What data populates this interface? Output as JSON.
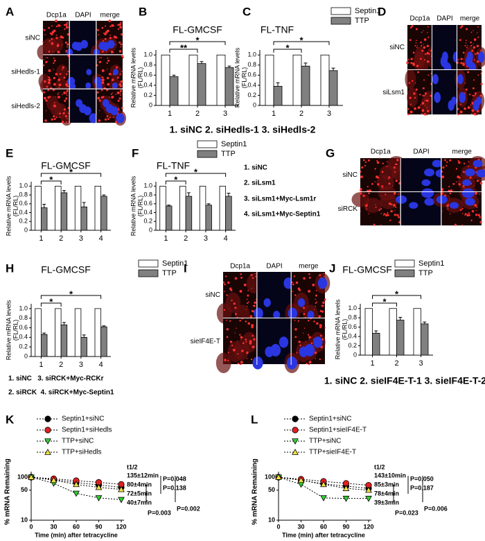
{
  "micrographs": [
    {
      "panel": "A",
      "columns": [
        "Dcp1a",
        "DAPI",
        "merge"
      ],
      "rows": [
        "siNC",
        "siHedls-1",
        "siHedls-2"
      ]
    },
    {
      "panel": "D",
      "columns": [
        "Dcp1a",
        "DAPI",
        "merge"
      ],
      "rows": [
        "siNC",
        "siLsm1"
      ]
    },
    {
      "panel": "G",
      "columns": [
        "Dcp1a",
        "DAPI",
        "merge"
      ],
      "rows": [
        "siNC",
        "siRCK"
      ]
    },
    {
      "panel": "I",
      "columns": [
        "Dcp1a",
        "DAPI",
        "merge"
      ],
      "rows": [
        "siNC",
        "sieIF4E-T"
      ]
    }
  ],
  "captions": [
    "1. siNC 2. siHedls-1 3. siHedls-2",
    "1. siNC",
    "2. siLsm1",
    "3. siLsm1+Myc-Lsm1r",
    "4. siLsm1+Myc-Septin1",
    "1. siNC   3. siRCK+Myc-RCKr",
    "2. siRCK  4. siRCK+Myc-Septin1",
    "1. siNC 2. sieIF4E-T-1 3. sieIF4E-T-2"
  ],
  "chart_data": [
    {
      "type": "bar",
      "panel": "B",
      "title": "FL-GMCSF",
      "ylabel": [
        "Relative mRNA levels",
        "(FL/RL)"
      ],
      "categories": [
        "1",
        "2",
        "3"
      ],
      "series": [
        {
          "color": "#ffffff",
          "values": [
            1,
            1,
            1
          ]
        },
        {
          "color": "#808080",
          "values": [
            0.57,
            0.83,
            0.75
          ],
          "errors": [
            0.03,
            0.04,
            0.03
          ]
        }
      ],
      "ylim": [
        0,
        1.1
      ],
      "yticks": [
        0,
        0.2,
        0.4,
        0.6,
        0.8,
        {
          "value": 1,
          "label": "1.0"
        }
      ],
      "brackets": [
        {
          "between": [
            0,
            1
          ],
          "label": "**"
        },
        {
          "between": [
            0,
            2
          ],
          "label": "*"
        }
      ]
    },
    {
      "type": "bar",
      "panel": "C",
      "title": "FL-TNF",
      "ylabel": [
        "Relative mRNA levels",
        "(FL/RL)"
      ],
      "categories": [
        "1",
        "2",
        "3"
      ],
      "series": [
        {
          "name": "Septin1",
          "color": "#ffffff",
          "values": [
            1,
            1,
            1
          ]
        },
        {
          "name": "TTP",
          "color": "#808080",
          "values": [
            0.38,
            0.78,
            0.69
          ],
          "errors": [
            0.07,
            0.06,
            0.05
          ]
        }
      ],
      "ylim": [
        0,
        1.1
      ],
      "yticks": [
        0,
        0.2,
        0.4,
        0.6,
        0.8,
        {
          "value": 1,
          "label": "1.0"
        }
      ],
      "brackets": [
        {
          "between": [
            0,
            1
          ],
          "label": "*"
        },
        {
          "between": [
            0,
            2
          ],
          "label": "*"
        }
      ]
    },
    {
      "type": "bar",
      "panel": "E",
      "title": "FL-GMCSF",
      "ylabel": [
        "Relative mRNA levels",
        "(FL/RL)"
      ],
      "categories": [
        "1",
        "2",
        "3",
        "4"
      ],
      "series": [
        {
          "color": "#ffffff",
          "values": [
            1,
            1,
            1,
            1
          ]
        },
        {
          "color": "#808080",
          "values": [
            0.51,
            0.85,
            0.53,
            0.77
          ],
          "errors": [
            0.08,
            0.05,
            0.1,
            0.03
          ]
        }
      ],
      "ylim": [
        0,
        1.1
      ],
      "yticks": [
        0,
        0.2,
        0.4,
        0.6,
        0.8,
        {
          "value": 1,
          "label": "1.0"
        }
      ],
      "brackets": [
        {
          "between": [
            0,
            1
          ],
          "label": "*"
        },
        {
          "between": [
            0,
            3
          ],
          "label": "*"
        }
      ]
    },
    {
      "type": "bar",
      "panel": "F",
      "title": "FL-TNF",
      "ylabel": [
        "Relative mRNA levels",
        "(FL/RL)"
      ],
      "categories": [
        "1",
        "2",
        "3",
        "4"
      ],
      "series": [
        {
          "name": "Septin1",
          "color": "#ffffff",
          "values": [
            1,
            1,
            1,
            1
          ]
        },
        {
          "name": "TTP",
          "color": "#808080",
          "values": [
            0.55,
            0.77,
            0.57,
            0.77
          ],
          "errors": [
            0.02,
            0.08,
            0.03,
            0.07
          ]
        }
      ],
      "ylim": [
        0,
        1.1
      ],
      "yticks": [
        0,
        0.2,
        0.4,
        0.6,
        0.8,
        {
          "value": 1,
          "label": "1.0"
        }
      ],
      "brackets": [
        {
          "between": [
            0,
            1
          ],
          "label": "*"
        },
        {
          "between": [
            0,
            3
          ],
          "label": "*"
        }
      ]
    },
    {
      "type": "bar",
      "panel": "H",
      "title": "FL-GMCSF",
      "ylabel": [
        "Relative mRNA levels",
        "(FL/RL)"
      ],
      "categories": [
        "1",
        "2",
        "3",
        "4"
      ],
      "series": [
        {
          "name": "Septin1",
          "color": "#ffffff",
          "values": [
            1,
            1,
            1,
            1
          ]
        },
        {
          "name": "TTP",
          "color": "#808080",
          "values": [
            0.46,
            0.66,
            0.4,
            0.62
          ],
          "errors": [
            0.03,
            0.05,
            0.05,
            0.02
          ]
        }
      ],
      "ylim": [
        0,
        1.1
      ],
      "yticks": [
        0,
        0.2,
        0.4,
        0.6,
        0.8,
        {
          "value": 1,
          "label": "1.0"
        }
      ],
      "brackets": [
        {
          "between": [
            0,
            1
          ],
          "label": "*"
        },
        {
          "between": [
            0,
            3
          ],
          "label": "*"
        }
      ]
    },
    {
      "type": "bar",
      "panel": "J",
      "title": "FL-GMCSF",
      "ylabel": [
        "Relative mRNA levels",
        "(FL/RL)"
      ],
      "categories": [
        "1",
        "2",
        "3"
      ],
      "series": [
        {
          "name": "Septin1",
          "color": "#ffffff",
          "values": [
            1,
            1,
            1
          ]
        },
        {
          "name": "TTP",
          "color": "#808080",
          "values": [
            0.47,
            0.75,
            0.67
          ],
          "errors": [
            0.05,
            0.06,
            0.04
          ]
        }
      ],
      "ylim": [
        0,
        1.1
      ],
      "yticks": [
        0,
        0.2,
        0.4,
        0.6,
        0.8,
        {
          "value": 1,
          "label": "1.0"
        }
      ],
      "brackets": [
        {
          "between": [
            0,
            1
          ],
          "label": "*"
        },
        {
          "between": [
            0,
            2
          ],
          "label": "*"
        }
      ]
    },
    {
      "type": "line",
      "panel": "K",
      "ylabel": "% mRNA Remaining",
      "xlabel": "Time (min) after tetracycline",
      "log_y": true,
      "x": [
        0,
        30,
        60,
        90,
        120
      ],
      "xlim": [
        0,
        120
      ],
      "xticks": [
        0,
        30,
        60,
        90,
        120
      ],
      "ylim": [
        10,
        100
      ],
      "yticks": [
        10,
        50,
        100
      ],
      "series": [
        {
          "name": "Septin1+siNC",
          "color": "#000000",
          "marker": "circle",
          "values": [
            100,
            88,
            75,
            66,
            58
          ]
        },
        {
          "name": "Septin1+siHedls",
          "color": "#e02020",
          "marker": "circle",
          "values": [
            100,
            92,
            83,
            76,
            68
          ]
        },
        {
          "name": "TTP+siNC",
          "color": "#30d030",
          "marker": "triangle-down",
          "values": [
            100,
            72,
            42,
            33,
            30
          ]
        },
        {
          "name": "TTP+siHedls",
          "color": "#f0e040",
          "marker": "triangle-up",
          "values": [
            100,
            85,
            68,
            58,
            52
          ]
        }
      ],
      "half_life_title": "t1/2",
      "half_lives": [
        "80±4min",
        "135±12min",
        "40±7min",
        "72±5min"
      ],
      "p_values": [
        "P=0.048",
        "P=0.138",
        "P=0.003",
        "P=0.002"
      ]
    },
    {
      "type": "line",
      "panel": "L",
      "ylabel": "% mRNA Remaining",
      "xlabel": "Time (min) after tetracycline",
      "log_y": true,
      "x": [
        0,
        30,
        60,
        90,
        120
      ],
      "xlim": [
        0,
        120
      ],
      "xticks": [
        0,
        30,
        60,
        90,
        120
      ],
      "ylim": [
        10,
        100
      ],
      "yticks": [
        10,
        50,
        100
      ],
      "series": [
        {
          "name": "Septin1+siNC",
          "color": "#000000",
          "marker": "circle",
          "values": [
            100,
            85,
            70,
            62,
            55
          ]
        },
        {
          "name": "Septin1+sieIF4E-T",
          "color": "#e02020",
          "marker": "circle",
          "values": [
            100,
            90,
            80,
            72,
            65
          ]
        },
        {
          "name": "TTP+siNC",
          "color": "#30d030",
          "marker": "triangle-down",
          "values": [
            100,
            68,
            33,
            32,
            32
          ]
        },
        {
          "name": "TTP+sieIF4E-T",
          "color": "#f0e040",
          "marker": "triangle-up",
          "values": [
            100,
            85,
            68,
            55,
            50
          ]
        }
      ],
      "half_life_title": "t1/2",
      "half_lives": [
        "85±3min",
        "143±10min",
        "39±3min",
        "78±4min"
      ],
      "p_values": [
        "P=0.050",
        "P=0.187",
        "P=0.023",
        "P=0.006"
      ]
    }
  ]
}
